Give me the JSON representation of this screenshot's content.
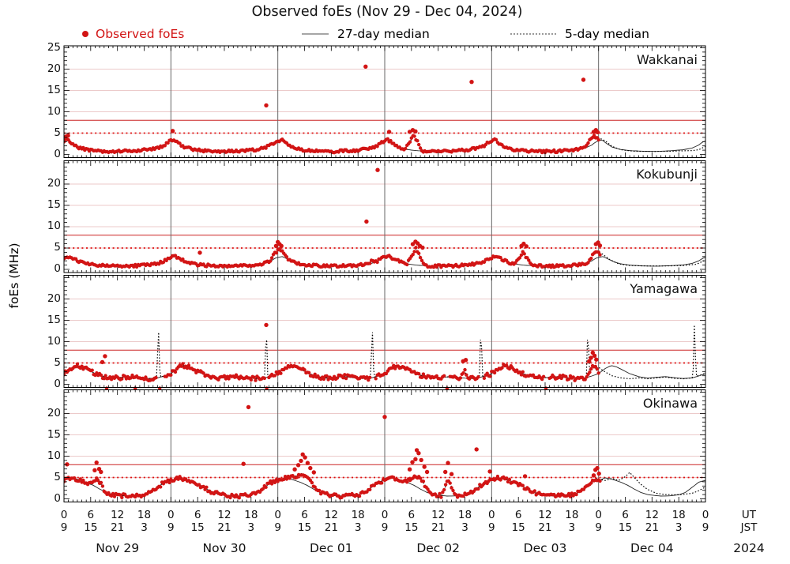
{
  "title": "Observed foEs (Nov 29 - Dec 04, 2024)",
  "legend": [
    {
      "label": "Observed foEs",
      "marker": "red-dot",
      "color": "#d21414"
    },
    {
      "label": "27-day median",
      "marker": "solid-line",
      "color": "#a6a6a6"
    },
    {
      "label": "5-day median",
      "marker": "dotted-line",
      "color": "#999999"
    }
  ],
  "axes": {
    "ylabel": "foEs (MHz)",
    "y_ticks_first_panel": [
      0,
      5,
      10,
      15,
      20,
      25
    ],
    "y_ticks_other_panels": [
      0,
      5,
      10,
      15,
      20
    ],
    "x_hour_cycle_ut": [
      0,
      6,
      12,
      18
    ],
    "x_hour_cycle_jst": [
      9,
      15,
      21,
      3
    ],
    "dates": [
      "Nov 29",
      "Nov 30",
      "Dec 01",
      "Dec 02",
      "Dec 03",
      "Dec 04"
    ],
    "right_labels": {
      "ut": "UT",
      "jst": "JST",
      "year": "2024"
    }
  },
  "thresholds": {
    "solid_red_mhz": 8,
    "dotted_red_mhz": 5
  },
  "colors": {
    "observed": "#d21414",
    "median27": "#222222",
    "median5": "#000000",
    "threshold_solid": "#cc2222",
    "threshold_dotted": "#dd1111",
    "gridline": "#eccaca",
    "dayline": "#666666",
    "frame": "#000000"
  },
  "chart_data": [
    {
      "type": "scatter",
      "station": "Wakkanai",
      "x_unit": "hours UT from Nov 29 00:00",
      "ylim": [
        0,
        25
      ],
      "observed_end_hour": 120.2,
      "scatter_band": 0.3,
      "daily_pattern": [
        [
          0,
          3.15
        ],
        [
          0.8,
          3.45
        ],
        [
          1.6,
          2.7
        ],
        [
          3,
          1.75
        ],
        [
          5,
          1.15
        ],
        [
          7,
          0.9
        ],
        [
          10,
          0.75
        ],
        [
          13,
          0.7
        ],
        [
          16,
          0.85
        ],
        [
          19,
          1.1
        ],
        [
          21,
          1.5
        ],
        [
          22.5,
          2.2
        ],
        [
          23.3,
          2.9
        ],
        [
          24,
          3.15
        ]
      ],
      "events": [
        [
          76.5,
          78.5,
          80.5,
          4.4
        ],
        [
          116.5,
          119.2,
          120.4,
          4.3
        ]
      ],
      "outliers": [
        [
          0.5,
          4.2
        ],
        [
          0.9,
          4.4
        ],
        [
          24.4,
          5.5
        ],
        [
          45.4,
          11.5
        ],
        [
          67.7,
          20.6
        ],
        [
          73.0,
          5.3
        ],
        [
          77.6,
          5.3
        ],
        [
          78.3,
          5.7
        ],
        [
          78.9,
          5.4
        ],
        [
          91.5,
          17.0
        ],
        [
          116.6,
          17.5
        ],
        [
          118.9,
          5.3
        ],
        [
          119.4,
          5.7
        ],
        [
          119.8,
          5.2
        ]
      ],
      "zero_dots": [],
      "gaps": [],
      "median5_spikes": [],
      "median5_forecast": [
        [
          120,
          3.9
        ],
        [
          121.5,
          3.2
        ],
        [
          123,
          1.9
        ],
        [
          125,
          1.1
        ],
        [
          128,
          0.75
        ],
        [
          132,
          0.7
        ],
        [
          136,
          0.75
        ],
        [
          139,
          0.85
        ],
        [
          141,
          0.9
        ],
        [
          142.5,
          1.1
        ],
        [
          144,
          1.9
        ]
      ]
    },
    {
      "type": "scatter",
      "station": "Kokubunji",
      "x_unit": "hours UT from Nov 29 00:00",
      "ylim": [
        0,
        25
      ],
      "observed_end_hour": 120.6,
      "scatter_band": 0.3,
      "daily_pattern": [
        [
          0,
          2.8
        ],
        [
          1,
          3.0
        ],
        [
          2.2,
          2.4
        ],
        [
          3.5,
          1.75
        ],
        [
          5,
          1.3
        ],
        [
          7,
          1.0
        ],
        [
          10,
          0.8
        ],
        [
          13,
          0.75
        ],
        [
          16,
          0.85
        ],
        [
          19,
          1.05
        ],
        [
          21,
          1.4
        ],
        [
          22.5,
          2.0
        ],
        [
          23.5,
          2.65
        ],
        [
          24,
          2.8
        ]
      ],
      "events": [
        [
          46.3,
          48.3,
          50.3,
          4.8
        ],
        [
          68.3,
          69.3,
          70.3,
          2.2
        ],
        [
          77,
          79,
          81,
          4.9
        ],
        [
          101,
          103,
          105,
          3.9
        ],
        [
          117.5,
          119.8,
          120.6,
          4.3
        ]
      ],
      "outliers": [
        [
          30.5,
          3.9
        ],
        [
          47.6,
          5.5
        ],
        [
          48.0,
          6.4
        ],
        [
          48.4,
          5.9
        ],
        [
          48.8,
          5.5
        ],
        [
          67.9,
          11.2
        ],
        [
          70.4,
          23.3
        ],
        [
          78.3,
          5.9
        ],
        [
          78.9,
          6.5
        ],
        [
          79.4,
          6.1
        ],
        [
          79.9,
          5.5
        ],
        [
          80.5,
          5.1
        ],
        [
          102.7,
          5.5
        ],
        [
          103.2,
          6.0
        ],
        [
          103.8,
          5.4
        ],
        [
          119.4,
          5.9
        ],
        [
          119.9,
          6.3
        ],
        [
          120.3,
          5.6
        ]
      ],
      "zero_dots": [],
      "gaps": [],
      "median5_spikes": [],
      "median5_forecast": [
        [
          120,
          4.1
        ],
        [
          121,
          3.5
        ],
        [
          122.5,
          2.3
        ],
        [
          124.5,
          1.3
        ],
        [
          127,
          0.9
        ],
        [
          131,
          0.8
        ],
        [
          135,
          0.8
        ],
        [
          139,
          0.9
        ],
        [
          142,
          1.2
        ],
        [
          144,
          2.2
        ]
      ]
    },
    {
      "type": "scatter",
      "station": "Yamagawa",
      "x_unit": "hours UT from Nov 29 00:00",
      "ylim": [
        0,
        25
      ],
      "observed_end_hour": 120.0,
      "scatter_band": 0.5,
      "daily_pattern": [
        [
          0,
          2.5
        ],
        [
          1.5,
          3.7
        ],
        [
          2.8,
          4.4
        ],
        [
          4,
          4.1
        ],
        [
          5.5,
          3.3
        ],
        [
          7,
          2.5
        ],
        [
          9,
          1.8
        ],
        [
          11,
          1.45
        ],
        [
          13,
          1.65
        ],
        [
          15,
          1.8
        ],
        [
          17,
          1.55
        ],
        [
          19,
          1.35
        ],
        [
          21,
          1.5
        ],
        [
          22.5,
          1.95
        ],
        [
          23.5,
          2.3
        ],
        [
          24,
          2.5
        ]
      ],
      "events": [
        [
          88.8,
          89.8,
          90.8,
          3.4
        ],
        [
          117.6,
          118.8,
          120.2,
          4.6
        ]
      ],
      "outliers": [
        [
          8.6,
          5.2
        ],
        [
          9.2,
          6.6
        ],
        [
          45.4,
          13.9
        ],
        [
          89.6,
          5.4
        ],
        [
          90.2,
          5.7
        ],
        [
          117.9,
          5.4
        ],
        [
          118.3,
          6.2
        ],
        [
          118.7,
          7.4
        ],
        [
          119.1,
          6.7
        ],
        [
          119.5,
          5.8
        ]
      ],
      "zero_dots": [
        9.6,
        16.0,
        21.5,
        45.5,
        86.0,
        108.2
      ],
      "gaps": [
        [
          20.9,
          22.5
        ],
        [
          45.2,
          45.7
        ],
        [
          68.7,
          70.0
        ],
        [
          85.5,
          86.6
        ],
        [
          93.1,
          94.3
        ],
        [
          107.7,
          108.8
        ]
      ],
      "median5_spikes": [
        [
          21.2,
          13.9
        ],
        [
          45.4,
          13.9
        ],
        [
          69.2,
          13.9
        ],
        [
          93.6,
          13.9
        ],
        [
          117.6,
          13.9
        ]
      ],
      "median5_forecast": [
        [
          120,
          4.0
        ],
        [
          121,
          3.2
        ],
        [
          123,
          2.0
        ],
        [
          125,
          1.5
        ],
        [
          127,
          1.3
        ],
        [
          129,
          1.5
        ],
        [
          131,
          1.3
        ],
        [
          133,
          1.5
        ],
        [
          135,
          1.7
        ],
        [
          137,
          1.4
        ],
        [
          139,
          1.3
        ],
        [
          141.2,
          1.5
        ],
        [
          141.5,
          13.9
        ],
        [
          141.9,
          1.9
        ],
        [
          143,
          2.2
        ],
        [
          144,
          2.6
        ]
      ]
    },
    {
      "type": "scatter",
      "station": "Okinawa",
      "x_unit": "hours UT from Nov 29 00:00",
      "ylim": [
        0,
        25
      ],
      "observed_end_hour": 120.4,
      "scatter_band": 0.45,
      "daily_pattern": [
        [
          0,
          4.3
        ],
        [
          1.5,
          4.9
        ],
        [
          3,
          4.6
        ],
        [
          5,
          3.9
        ],
        [
          6.5,
          3.2
        ],
        [
          8,
          2.3
        ],
        [
          9.5,
          1.5
        ],
        [
          11,
          1.0
        ],
        [
          12.5,
          0.8
        ],
        [
          14,
          0.65
        ],
        [
          16,
          0.7
        ],
        [
          18,
          0.95
        ],
        [
          19.5,
          1.5
        ],
        [
          21,
          2.7
        ],
        [
          22.5,
          3.9
        ],
        [
          23.5,
          4.2
        ],
        [
          24,
          4.3
        ]
      ],
      "events": [
        [
          6,
          7.5,
          9,
          5.0
        ],
        [
          49.5,
          53.5,
          57,
          6.0
        ],
        [
          76.5,
          79,
          82.5,
          5.4
        ],
        [
          84.8,
          86.3,
          87.8,
          4.6
        ],
        [
          95,
          96.5,
          98,
          4.4
        ],
        [
          118,
          119.5,
          120.4,
          4.8
        ]
      ],
      "outliers": [
        [
          0.7,
          8.1
        ],
        [
          6.9,
          6.7
        ],
        [
          7.3,
          8.5
        ],
        [
          7.9,
          7.0
        ],
        [
          8.3,
          6.3
        ],
        [
          40.3,
          8.2
        ],
        [
          41.4,
          21.5
        ],
        [
          51.8,
          6.9
        ],
        [
          52.6,
          7.9
        ],
        [
          53.2,
          8.9
        ],
        [
          53.6,
          10.4
        ],
        [
          54.1,
          9.7
        ],
        [
          54.7,
          8.4
        ],
        [
          55.3,
          7.2
        ],
        [
          56.1,
          6.2
        ],
        [
          72.0,
          19.2
        ],
        [
          77.6,
          6.9
        ],
        [
          78.2,
          8.6
        ],
        [
          78.9,
          9.3
        ],
        [
          79.2,
          11.4
        ],
        [
          79.6,
          10.7
        ],
        [
          80.2,
          9.1
        ],
        [
          80.9,
          7.5
        ],
        [
          81.5,
          6.3
        ],
        [
          85.6,
          6.3
        ],
        [
          86.2,
          8.4
        ],
        [
          87.0,
          5.8
        ],
        [
          92.6,
          11.6
        ],
        [
          95.6,
          6.4
        ],
        [
          103.5,
          5.3
        ],
        [
          118.9,
          5.5
        ],
        [
          119.3,
          6.8
        ],
        [
          119.7,
          7.2
        ],
        [
          120.1,
          5.9
        ]
      ],
      "zero_dots": [],
      "gaps": [],
      "median5_spikes": [],
      "median5_forecast": [
        [
          120,
          4.6
        ],
        [
          121.5,
          4.3
        ],
        [
          123,
          4.8
        ],
        [
          124.5,
          4.3
        ],
        [
          126,
          5.2
        ],
        [
          127,
          6.2
        ],
        [
          128,
          5.0
        ],
        [
          129.5,
          3.4
        ],
        [
          131,
          2.2
        ],
        [
          133,
          1.3
        ],
        [
          135,
          1.0
        ],
        [
          137,
          0.95
        ],
        [
          139,
          1.05
        ],
        [
          141,
          1.3
        ],
        [
          142.5,
          1.9
        ],
        [
          144,
          2.8
        ]
      ]
    }
  ]
}
